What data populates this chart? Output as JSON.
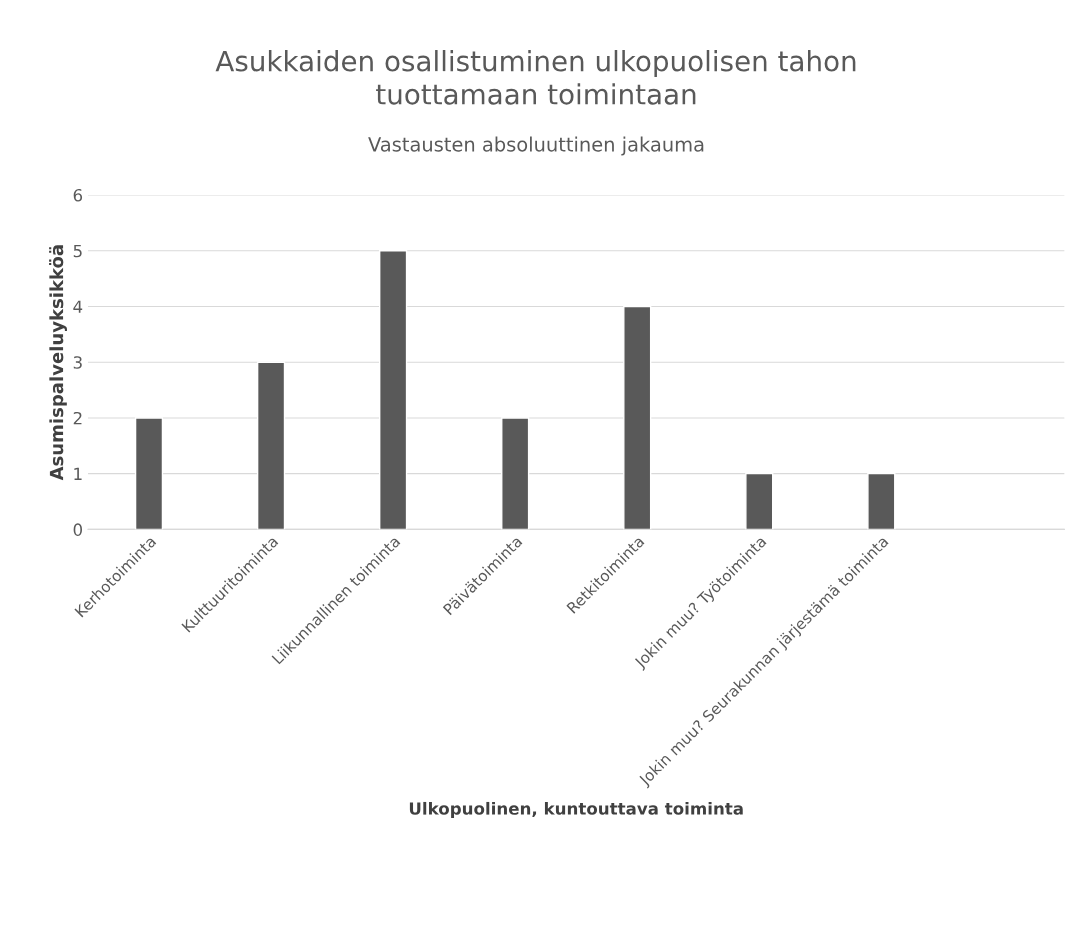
{
  "chart_data": {
    "type": "bar",
    "title": "Asukkaiden osallistuminen ulkopuolisen tahon\ntuottamaan toimintaan",
    "subtitle": "Vastausten absoluuttinen jakauma",
    "xlabel": "Ulkopuolinen, kuntouttava toiminta",
    "ylabel": "Asumispalveluyksikköä",
    "categories": [
      "Kerhotoiminta",
      "Kulttuuritoiminta",
      "Liikunnallinen toiminta",
      "Päivätoiminta",
      "Retkitoiminta",
      "Jokin muu? Työtoiminta",
      "Jokin muu? Seurakunnan järjestämä toiminta",
      null
    ],
    "values": [
      2,
      3,
      5,
      2,
      4,
      1,
      1,
      null
    ],
    "color": "#595959",
    "ylim": [
      0,
      6
    ],
    "yticks": [
      0,
      1,
      2,
      3,
      4,
      5,
      6
    ],
    "grid": "y"
  }
}
